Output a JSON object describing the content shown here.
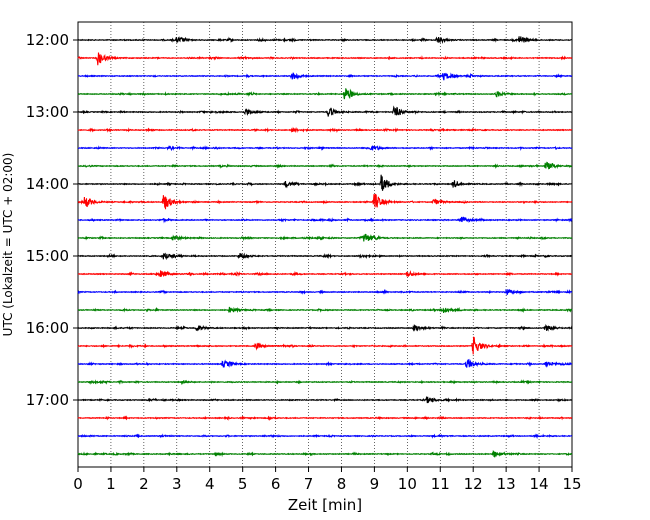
{
  "chart_data": {
    "type": "line",
    "title": "",
    "xlabel": "Zeit  [min]",
    "ylabel": "UTC (Lokalzeit = UTC + 02:00)",
    "xlim": [
      0,
      15
    ],
    "x_ticks": [
      0,
      1,
      2,
      3,
      4,
      5,
      6,
      7,
      8,
      9,
      10,
      11,
      12,
      13,
      14,
      15
    ],
    "y_tick_labels": [
      "12:00",
      "13:00",
      "14:00",
      "15:00",
      "16:00",
      "17:00"
    ],
    "rows_per_hour": 4,
    "minutes_per_row": 15,
    "grid": "vertical dotted",
    "colors": [
      "#000000",
      "#ff0000",
      "#0000ff",
      "#008000"
    ],
    "series": [
      {
        "start": "12:00",
        "color": "#000000",
        "events": [
          {
            "t": 3.0,
            "a": 0.5
          },
          {
            "t": 10.9,
            "a": 0.5
          },
          {
            "t": 13.4,
            "a": 0.8
          }
        ]
      },
      {
        "start": "12:15",
        "color": "#ff0000",
        "events": [
          {
            "t": 0.6,
            "a": 1.2
          }
        ]
      },
      {
        "start": "12:30",
        "color": "#0000ff",
        "events": [
          {
            "t": 6.5,
            "a": 0.6
          },
          {
            "t": 11.1,
            "a": 0.6
          }
        ]
      },
      {
        "start": "12:45",
        "color": "#008000",
        "events": [
          {
            "t": 8.1,
            "a": 1.2
          },
          {
            "t": 12.7,
            "a": 0.5
          }
        ]
      },
      {
        "start": "13:00",
        "color": "#000000",
        "events": [
          {
            "t": 5.1,
            "a": 0.5
          },
          {
            "t": 7.6,
            "a": 0.8
          },
          {
            "t": 9.6,
            "a": 0.9
          }
        ]
      },
      {
        "start": "13:15",
        "color": "#ff0000",
        "events": []
      },
      {
        "start": "13:30",
        "color": "#0000ff",
        "events": [
          {
            "t": 8.9,
            "a": 0.4
          }
        ]
      },
      {
        "start": "13:45",
        "color": "#008000",
        "events": [
          {
            "t": 14.2,
            "a": 0.6
          }
        ]
      },
      {
        "start": "14:00",
        "color": "#000000",
        "events": [
          {
            "t": 6.3,
            "a": 0.5
          },
          {
            "t": 9.2,
            "a": 1.5
          },
          {
            "t": 11.4,
            "a": 0.6
          }
        ]
      },
      {
        "start": "14:15",
        "color": "#ff0000",
        "events": [
          {
            "t": 0.2,
            "a": 0.9
          },
          {
            "t": 2.6,
            "a": 1.5
          },
          {
            "t": 9.0,
            "a": 1.5
          },
          {
            "t": 10.8,
            "a": 0.5
          }
        ]
      },
      {
        "start": "14:30",
        "color": "#0000ff",
        "events": [
          {
            "t": 11.6,
            "a": 0.8
          }
        ]
      },
      {
        "start": "14:45",
        "color": "#008000",
        "events": [
          {
            "t": 2.9,
            "a": 0.5
          },
          {
            "t": 8.7,
            "a": 0.9
          }
        ]
      },
      {
        "start": "15:00",
        "color": "#000000",
        "events": [
          {
            "t": 2.6,
            "a": 0.5
          },
          {
            "t": 4.9,
            "a": 0.5
          }
        ]
      },
      {
        "start": "15:15",
        "color": "#ff0000",
        "events": [
          {
            "t": 2.5,
            "a": 0.5
          },
          {
            "t": 10.0,
            "a": 0.5
          }
        ]
      },
      {
        "start": "15:30",
        "color": "#0000ff",
        "events": [
          {
            "t": 13.0,
            "a": 0.5
          }
        ]
      },
      {
        "start": "15:45",
        "color": "#008000",
        "events": [
          {
            "t": 4.6,
            "a": 0.5
          },
          {
            "t": 11.1,
            "a": 0.6
          }
        ]
      },
      {
        "start": "16:00",
        "color": "#000000",
        "events": [
          {
            "t": 3.6,
            "a": 0.5
          },
          {
            "t": 10.2,
            "a": 0.5
          },
          {
            "t": 14.2,
            "a": 0.5
          }
        ]
      },
      {
        "start": "16:15",
        "color": "#ff0000",
        "events": [
          {
            "t": 5.4,
            "a": 0.5
          },
          {
            "t": 12.0,
            "a": 1.6
          }
        ]
      },
      {
        "start": "16:30",
        "color": "#0000ff",
        "events": [
          {
            "t": 4.4,
            "a": 0.6
          },
          {
            "t": 11.8,
            "a": 0.9
          },
          {
            "t": 14.2,
            "a": 0.5
          }
        ]
      },
      {
        "start": "16:45",
        "color": "#008000",
        "events": []
      },
      {
        "start": "17:00",
        "color": "#000000",
        "events": [
          {
            "t": 10.6,
            "a": 0.5
          }
        ]
      },
      {
        "start": "17:15",
        "color": "#ff0000",
        "events": []
      },
      {
        "start": "17:30",
        "color": "#0000ff",
        "events": []
      },
      {
        "start": "17:45",
        "color": "#008000",
        "events": [
          {
            "t": 12.6,
            "a": 0.5
          }
        ]
      }
    ]
  }
}
